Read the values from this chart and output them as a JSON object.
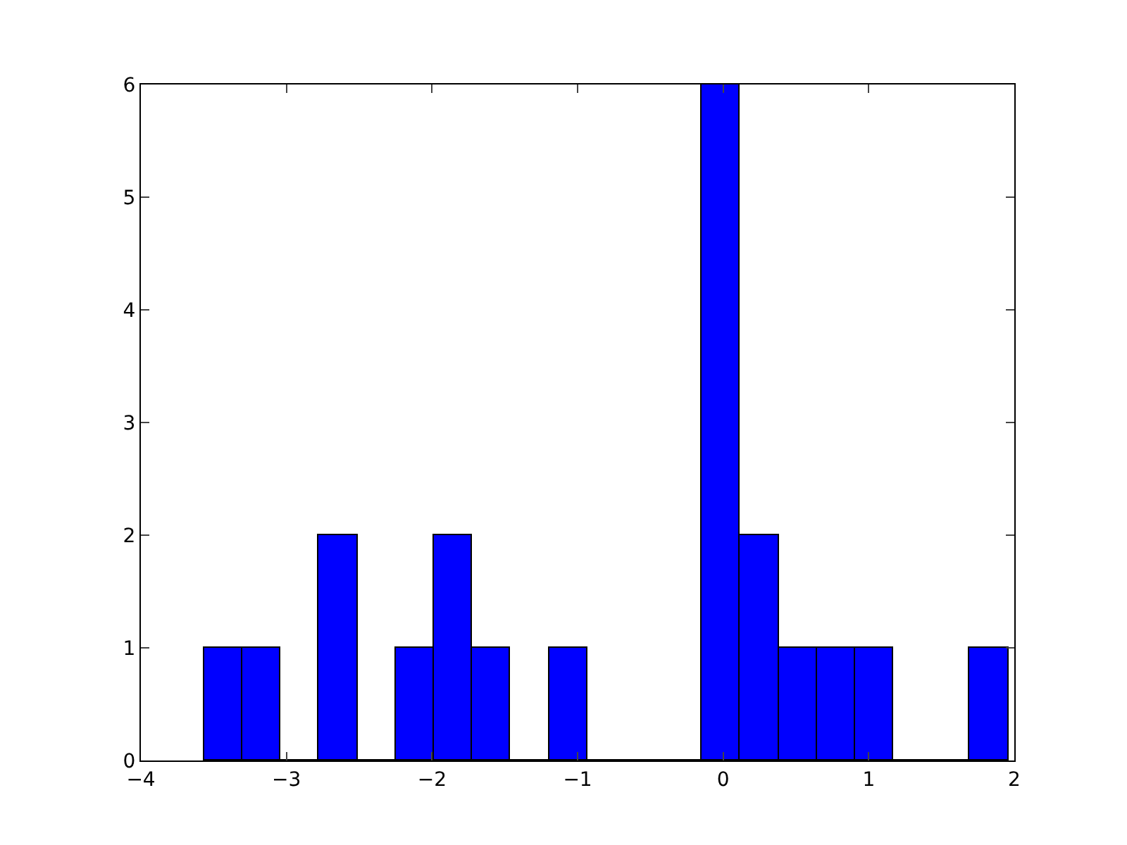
{
  "chart_data": {
    "type": "histogram",
    "bins": [
      -3.565,
      -3.302,
      -3.039,
      -2.776,
      -2.513,
      -2.25,
      -1.987,
      -1.724,
      -1.461,
      -1.198,
      -0.935,
      -0.672,
      -0.409,
      -0.146,
      0.117,
      0.38,
      0.643,
      0.906,
      1.169,
      1.432,
      1.695,
      1.958
    ],
    "values": [
      1,
      1,
      0,
      2,
      0,
      1,
      2,
      1,
      0,
      1,
      0,
      0,
      0,
      6,
      2,
      1,
      1,
      1,
      0,
      0,
      1
    ],
    "color": "#0000ff",
    "xlim": [
      -4,
      2
    ],
    "xticks": [
      {
        "value": -4,
        "label": "−4"
      },
      {
        "value": -3,
        "label": "−3"
      },
      {
        "value": -2,
        "label": "−2"
      },
      {
        "value": -1,
        "label": "−1"
      },
      0,
      1,
      2
    ],
    "ylim": [
      0,
      6
    ],
    "yticks": [
      0,
      1,
      2,
      3,
      4,
      5,
      6
    ],
    "grid": false
  }
}
